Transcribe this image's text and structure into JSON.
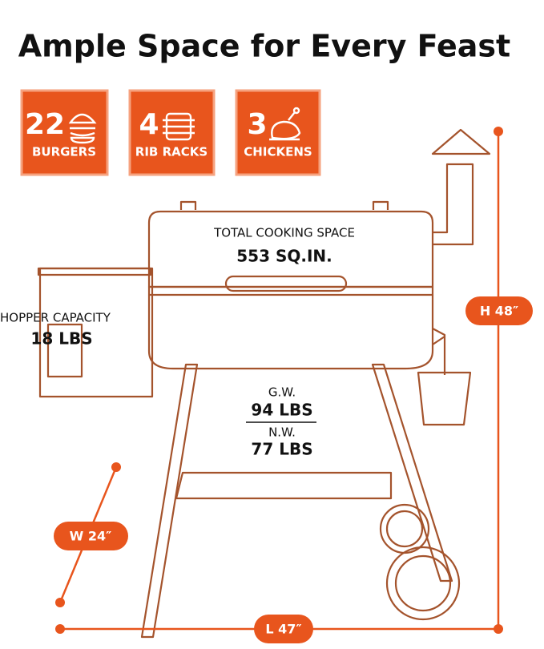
{
  "header": {
    "title": "Ample Space for Every Feast"
  },
  "badges": [
    {
      "number": "22",
      "label": "BURGERS"
    },
    {
      "number": "4",
      "label": "RIB RACKS"
    },
    {
      "number": "3",
      "label": "CHICKENS"
    }
  ],
  "specs": {
    "cooking_space": {
      "label": "TOTAL COOKING SPACE",
      "value": "553 SQ.IN."
    },
    "hopper": {
      "label": "HOPPER CAPACITY",
      "value": "18 LBS"
    },
    "gross_weight": {
      "label": "G.W.",
      "value": "94 LBS"
    },
    "net_weight": {
      "label": "N.W.",
      "value": "77 LBS"
    }
  },
  "dimensions": {
    "height": "H 48″",
    "width": "W 24″",
    "length": "L 47″"
  }
}
